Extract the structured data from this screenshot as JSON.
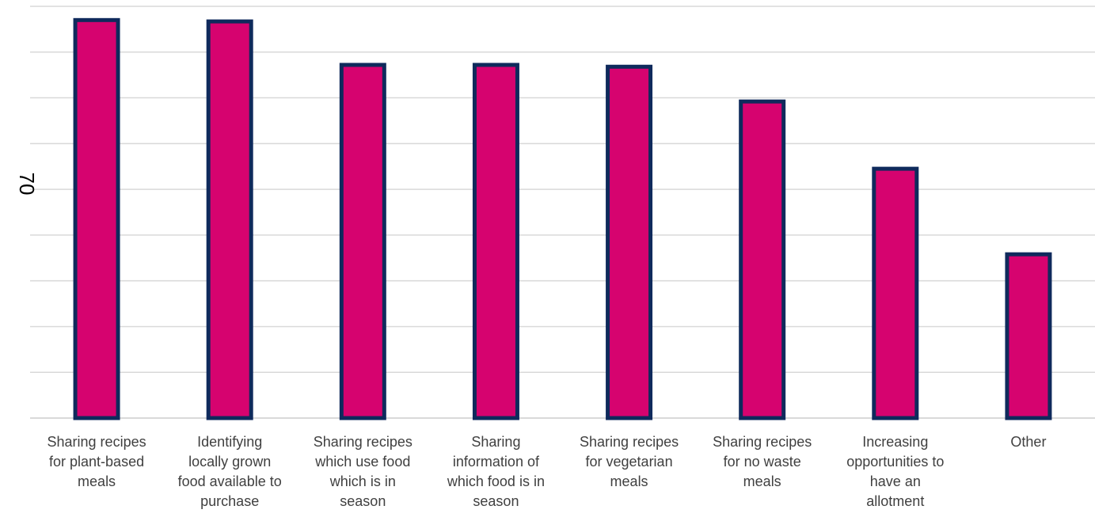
{
  "chart_data": {
    "type": "bar",
    "ylabel": "70",
    "categories": [
      "Sharing recipes for plant-based meals",
      "Identifying locally grown food available to purchase",
      "Sharing recipes which use food which is in season",
      "Sharing information of which food is in season",
      "Sharing recipes for vegetarian meals",
      "Sharing recipes for no waste meals",
      "Increasing opportunities to have an allotment",
      "Other"
    ],
    "category_lines": [
      [
        "Sharing recipes",
        "for plant-based",
        "meals"
      ],
      [
        "Identifying",
        "locally grown",
        "food available to",
        "purchase"
      ],
      [
        "Sharing recipes",
        "which use food",
        "which is in",
        "season"
      ],
      [
        "Sharing",
        "information of",
        "which food is in",
        "season"
      ],
      [
        "Sharing recipes",
        "for vegetarian",
        "meals"
      ],
      [
        "Sharing recipes",
        "for no waste",
        "meals"
      ],
      [
        "Increasing",
        "opportunities to",
        "have an",
        "allotment"
      ],
      [
        "Other"
      ]
    ],
    "values": [
      87,
      86.7,
      77.2,
      77.2,
      76.8,
      69.2,
      54.5,
      35.8
    ],
    "ylim": [
      0,
      90
    ],
    "grid": true,
    "legend": "none",
    "colors": {
      "bar_fill": "#d6036f",
      "bar_border": "#0f2a5c",
      "grid": "#d9d9d9",
      "axis": "#d9d9d9",
      "label": "#404040"
    }
  }
}
